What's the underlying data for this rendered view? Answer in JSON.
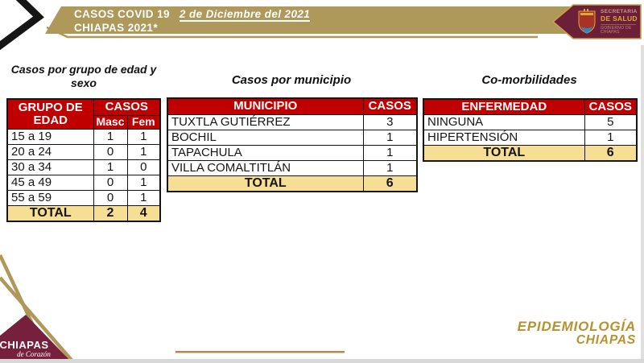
{
  "header": {
    "title": "CASOS COVID 19",
    "date": "2 de Diciembre del 2021",
    "subtitle": "CHIAPAS 2021*"
  },
  "logo": {
    "secretaria": "SECRETARIA",
    "de_salud": "DE SALUD",
    "gobierno": "GOBIERNO DE CHIAPAS"
  },
  "tables": {
    "age_sex": {
      "title": "Casos por grupo de edad y sexo",
      "col_edad": "GRUPO DE EDAD",
      "col_casos": "CASOS",
      "col_masc": "Masc",
      "col_fem": "Fem",
      "rows": [
        [
          "15 a 19",
          "1",
          "1"
        ],
        [
          "20 a 24",
          "0",
          "1"
        ],
        [
          "30 a 34",
          "1",
          "0"
        ],
        [
          "45 a 49",
          "0",
          "1"
        ],
        [
          "55 a 59",
          "0",
          "1"
        ]
      ],
      "total": [
        "TOTAL",
        "2",
        "4"
      ]
    },
    "municipio": {
      "title": "Casos por municipio",
      "col_municipio": "MUNICIPIO",
      "col_casos": "CASOS",
      "rows": [
        [
          "TUXTLA GUTIÉRREZ",
          "3"
        ],
        [
          "BOCHIL",
          "1"
        ],
        [
          "TAPACHULA",
          "1"
        ],
        [
          "VILLA COMALTITLÁN",
          "1"
        ]
      ],
      "total": [
        "TOTAL",
        "6"
      ]
    },
    "comorbilidades": {
      "title": "Co-morbilidades",
      "col_enfermedad": "ENFERMEDAD",
      "col_casos": "CASOS",
      "rows": [
        [
          "NINGUNA",
          "5"
        ],
        [
          "HIPERTENSIÓN",
          "1"
        ]
      ],
      "total": [
        "TOTAL",
        "6"
      ]
    }
  },
  "footer": {
    "brand": "CHIAPAS",
    "slogan": "de Corazón",
    "epi_line1": "EPIDEMIOLOGÍA",
    "epi_line2": "CHIAPAS"
  },
  "colors": {
    "banner_gold": "#AE985A",
    "pennant_maroon": "#6E1F38",
    "table_header_red": "#C00000",
    "total_row_tan": "#F6DF95",
    "accent_gold_text": "#B6922E",
    "triangle_maroon": "#77203E"
  }
}
